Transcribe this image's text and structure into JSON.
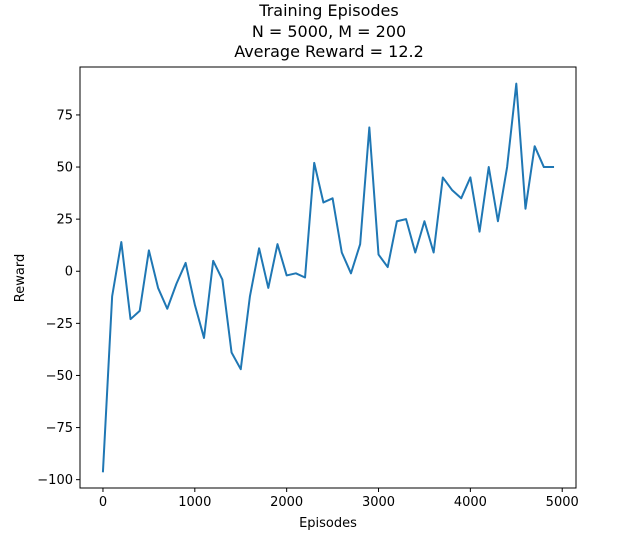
{
  "chart_data": {
    "type": "line",
    "title_lines": [
      "Training Episodes",
      "N = 5000, M = 200",
      "Average Reward = 12.2"
    ],
    "xlabel": "Episodes",
    "ylabel": "Reward",
    "xlim": [
      -250,
      5150
    ],
    "ylim": [
      -104,
      98
    ],
    "xticks": [
      0,
      1000,
      2000,
      3000,
      4000,
      5000
    ],
    "xtick_labels": [
      "0",
      "1000",
      "2000",
      "3000",
      "4000",
      "5000"
    ],
    "yticks": [
      -100,
      -75,
      -50,
      -25,
      0,
      25,
      50,
      75
    ],
    "ytick_labels": [
      "−100",
      "−75",
      "−50",
      "−25",
      "0",
      "25",
      "50",
      "75"
    ],
    "grid": false,
    "colors": {
      "line": "#1f77b4",
      "axes": "#000000",
      "background": "#ffffff"
    },
    "series": [
      {
        "x": [
          0,
          100,
          200,
          300,
          400,
          500,
          600,
          700,
          800,
          900,
          1000,
          1100,
          1200,
          1300,
          1400,
          1500,
          1600,
          1700,
          1800,
          1900,
          2000,
          2100,
          2200,
          2300,
          2400,
          2500,
          2600,
          2700,
          2800,
          2900,
          3000,
          3100,
          3200,
          3300,
          3400,
          3500,
          3600,
          3700,
          3800,
          3900,
          4000,
          4100,
          4200,
          4300,
          4400,
          4500,
          4600,
          4700,
          4800,
          4900
        ],
        "values": [
          -96,
          -12,
          14,
          -23,
          -19,
          10,
          -8,
          -18,
          -6,
          4,
          -16,
          -32,
          5,
          -4,
          -39,
          -47,
          -12,
          11,
          -8,
          13,
          -2,
          -1,
          -3,
          52,
          33,
          35,
          9,
          -1,
          13,
          69,
          8,
          2,
          24,
          25,
          9,
          24,
          9,
          45,
          39,
          35,
          45,
          19,
          50,
          24,
          50,
          90,
          30,
          60,
          50,
          50
        ]
      }
    ]
  }
}
